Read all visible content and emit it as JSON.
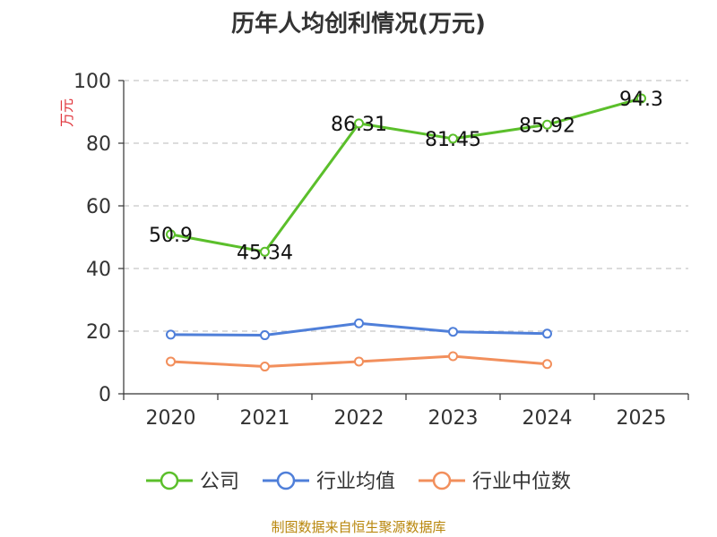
{
  "chart_data": {
    "type": "line",
    "title": "历年人均创利情况(万元)",
    "ylabel": "万元",
    "xlabel": "",
    "ylim": [
      0,
      100
    ],
    "yticks": [
      0,
      20,
      40,
      60,
      80,
      100
    ],
    "categories": [
      "2020",
      "2021",
      "2022",
      "2023",
      "2024",
      "2025"
    ],
    "grid": true,
    "legend_position": "bottom",
    "series": [
      {
        "name": "公司",
        "color": "#5bbf2b",
        "values": [
          50.9,
          45.34,
          86.31,
          81.45,
          85.92,
          94.3
        ],
        "data_labels": [
          "50.9",
          "45.34",
          "86.31",
          "81.45",
          "85.92",
          "94.3"
        ],
        "show_labels": true
      },
      {
        "name": "行业均值",
        "color": "#4f7fd9",
        "values": [
          18.9,
          18.7,
          22.5,
          19.8,
          19.2,
          null
        ],
        "show_labels": false
      },
      {
        "name": "行业中位数",
        "color": "#f28f5c",
        "values": [
          10.3,
          8.7,
          10.3,
          12.0,
          9.5,
          null
        ],
        "show_labels": false
      }
    ]
  },
  "footer": {
    "source": "制图数据来自恒生聚源数据库"
  }
}
